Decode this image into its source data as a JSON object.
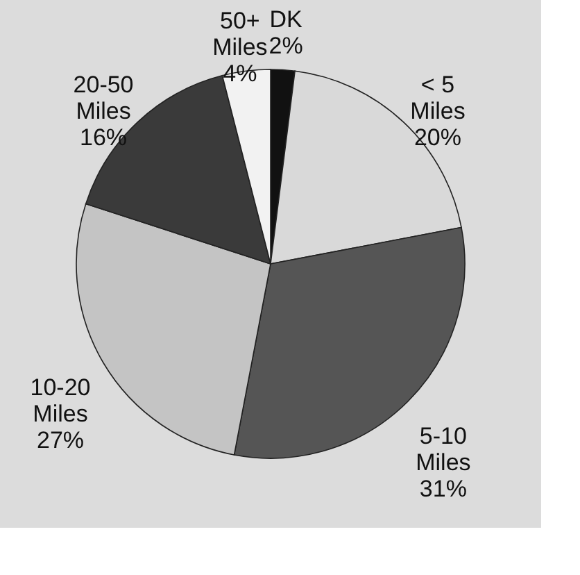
{
  "chart_data": {
    "type": "pie",
    "categories": [
      "DK",
      "< 5 Miles",
      "5-10 Miles",
      "10-20 Miles",
      "20-50 Miles",
      "50+ Miles"
    ],
    "values": [
      2,
      20,
      31,
      27,
      16,
      4
    ],
    "value_labels": [
      "2%",
      "20%",
      "31%",
      "27%",
      "16%",
      "4%"
    ],
    "colors": [
      "#111111",
      "#d9d9d9",
      "#555555",
      "#c4c4c4",
      "#3a3a3a",
      "#f2f2f2"
    ],
    "legend": false
  }
}
